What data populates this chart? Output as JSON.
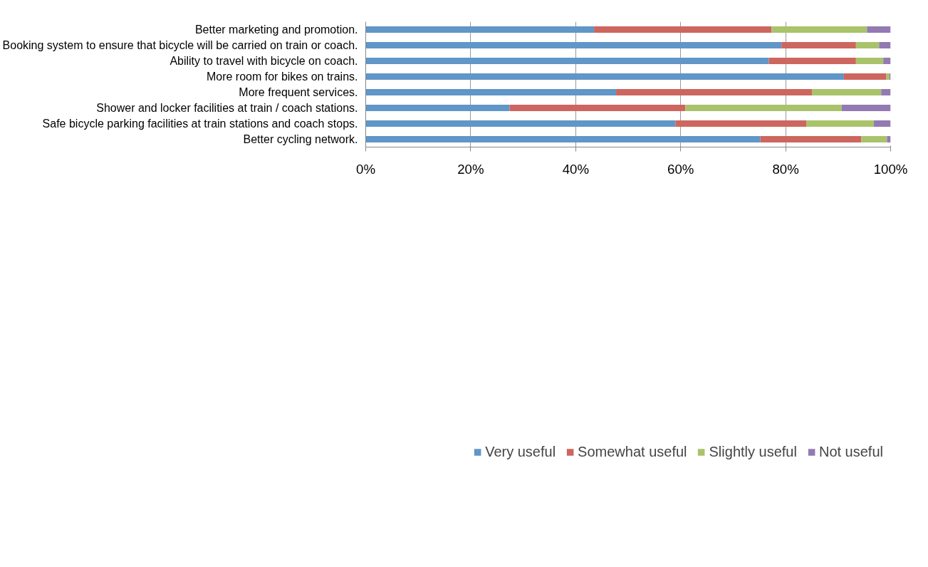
{
  "chart_data": {
    "type": "bar",
    "orientation": "horizontal",
    "stacked": true,
    "categories": [
      "Better marketing and promotion.",
      "Booking system to ensure that bicycle will be carried on train or coach.",
      "Ability to travel with bicycle on coach.",
      "More room for bikes on trains.",
      "More frequent services.",
      "Shower and locker facilities at train / coach stations.",
      "Safe bicycle parking facilities at train stations and coach stops.",
      "Better cycling network."
    ],
    "series": [
      {
        "name": "Very useful",
        "color": "#6096c8",
        "values": [
          43.5,
          79.2,
          76.8,
          91.1,
          47.7,
          27.4,
          59.0,
          75.2
        ]
      },
      {
        "name": "Somewhat useful",
        "color": "#cd665e",
        "values": [
          33.8,
          14.2,
          16.6,
          8.1,
          37.3,
          33.5,
          25.0,
          19.2
        ]
      },
      {
        "name": "Slightly useful",
        "color": "#a9c36b",
        "values": [
          18.2,
          4.4,
          5.2,
          0.6,
          13.2,
          29.8,
          12.8,
          4.9
        ]
      },
      {
        "name": "Not useful",
        "color": "#937ab3",
        "values": [
          4.5,
          2.2,
          1.4,
          0.2,
          1.8,
          9.3,
          3.2,
          0.7
        ]
      }
    ],
    "xlim": [
      0,
      100
    ],
    "xticks": [
      {
        "value": 0,
        "label": "0%"
      },
      {
        "value": 20,
        "label": "20%"
      },
      {
        "value": 40,
        "label": "40%"
      },
      {
        "value": 60,
        "label": "60%"
      },
      {
        "value": 80,
        "label": "80%"
      },
      {
        "value": 100,
        "label": "100%"
      }
    ],
    "grid": "x",
    "legend": "bottom"
  }
}
